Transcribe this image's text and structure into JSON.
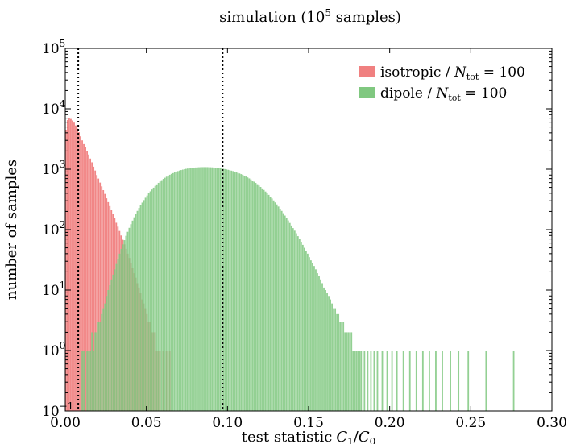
{
  "chart_data": {
    "type": "histogram",
    "title": "simulation (10",
    "title_sup": "5",
    "title_end": " samples)",
    "xlabel": "test statistic",
    "xlabel_math": "C",
    "xlabel_sub1": "1",
    "xlabel_slash": "/",
    "xlabel_sub0": "0",
    "ylabel": "number of samples",
    "xlim": [
      0.0,
      0.3
    ],
    "ylim": [
      0.1,
      100000
    ],
    "yscale": "log",
    "bin_width": 0.001,
    "xticks": [
      "0.00",
      "0.05",
      "0.10",
      "0.15",
      "0.20",
      "0.25",
      "0.30"
    ],
    "yticks": [
      {
        "value": 0.1,
        "base": "10",
        "exp": "−1"
      },
      {
        "value": 1,
        "base": "10",
        "exp": "0"
      },
      {
        "value": 10,
        "base": "10",
        "exp": "1"
      },
      {
        "value": 100,
        "base": "10",
        "exp": "2"
      },
      {
        "value": 1000,
        "base": "10",
        "exp": "3"
      },
      {
        "value": 10000,
        "base": "10",
        "exp": "4"
      },
      {
        "value": 100000,
        "base": "10",
        "exp": "5"
      }
    ],
    "vlines": [
      0.008,
      0.097
    ],
    "legend_position": "top-right",
    "series": [
      {
        "name": "isotropic",
        "legend_math": "N",
        "legend_sub": "tot",
        "legend_eq": " = 100",
        "color": "#f08080",
        "bins": [
          [
            0.0,
            4500
          ],
          [
            0.001,
            6500
          ],
          [
            0.002,
            7000
          ],
          [
            0.003,
            6800
          ],
          [
            0.004,
            6400
          ],
          [
            0.005,
            5900
          ],
          [
            0.006,
            5300
          ],
          [
            0.007,
            4700
          ],
          [
            0.008,
            4100
          ],
          [
            0.009,
            3500
          ],
          [
            0.01,
            3000
          ],
          [
            0.011,
            2600
          ],
          [
            0.012,
            2300
          ],
          [
            0.013,
            2000
          ],
          [
            0.014,
            1750
          ],
          [
            0.015,
            1500
          ],
          [
            0.016,
            1300
          ],
          [
            0.017,
            1100
          ],
          [
            0.018,
            950
          ],
          [
            0.019,
            800
          ],
          [
            0.02,
            700
          ],
          [
            0.021,
            600
          ],
          [
            0.022,
            520
          ],
          [
            0.023,
            450
          ],
          [
            0.024,
            390
          ],
          [
            0.025,
            330
          ],
          [
            0.026,
            285
          ],
          [
            0.027,
            245
          ],
          [
            0.028,
            210
          ],
          [
            0.029,
            180
          ],
          [
            0.03,
            155
          ],
          [
            0.031,
            130
          ],
          [
            0.032,
            112
          ],
          [
            0.033,
            95
          ],
          [
            0.034,
            80
          ],
          [
            0.035,
            68
          ],
          [
            0.036,
            57
          ],
          [
            0.037,
            48
          ],
          [
            0.038,
            40
          ],
          [
            0.039,
            34
          ],
          [
            0.04,
            28
          ],
          [
            0.041,
            23
          ],
          [
            0.042,
            19
          ],
          [
            0.043,
            16
          ],
          [
            0.044,
            13
          ],
          [
            0.045,
            11
          ],
          [
            0.046,
            9
          ],
          [
            0.047,
            7
          ],
          [
            0.048,
            6
          ],
          [
            0.049,
            5
          ],
          [
            0.05,
            4
          ],
          [
            0.051,
            3
          ],
          [
            0.052,
            3
          ],
          [
            0.053,
            2
          ],
          [
            0.054,
            2
          ],
          [
            0.055,
            2
          ],
          [
            0.056,
            1
          ],
          [
            0.057,
            1
          ],
          [
            0.058,
            1
          ],
          [
            0.06,
            1
          ],
          [
            0.062,
            1
          ],
          [
            0.064,
            1
          ]
        ]
      },
      {
        "name": "dipole",
        "legend_math": "N",
        "legend_sub": "tot",
        "legend_eq": " = 100",
        "color": "#80c880",
        "bins": [
          [
            0.01,
            1
          ],
          [
            0.011,
            1
          ],
          [
            0.013,
            1
          ],
          [
            0.014,
            1
          ],
          [
            0.015,
            1
          ],
          [
            0.016,
            2
          ],
          [
            0.017,
            1
          ],
          [
            0.018,
            2
          ],
          [
            0.019,
            2
          ],
          [
            0.02,
            3
          ],
          [
            0.021,
            3
          ],
          [
            0.022,
            4
          ],
          [
            0.023,
            5
          ],
          [
            0.024,
            6
          ],
          [
            0.025,
            8
          ],
          [
            0.026,
            10
          ],
          [
            0.027,
            12
          ],
          [
            0.028,
            15
          ],
          [
            0.029,
            18
          ],
          [
            0.03,
            22
          ],
          [
            0.031,
            27
          ],
          [
            0.032,
            33
          ],
          [
            0.033,
            40
          ],
          [
            0.034,
            48
          ],
          [
            0.035,
            57
          ],
          [
            0.036,
            67
          ],
          [
            0.037,
            79
          ],
          [
            0.038,
            92
          ],
          [
            0.039,
            107
          ],
          [
            0.04,
            123
          ],
          [
            0.041,
            141
          ],
          [
            0.042,
            160
          ],
          [
            0.043,
            181
          ],
          [
            0.044,
            204
          ],
          [
            0.045,
            228
          ],
          [
            0.046,
            253
          ],
          [
            0.047,
            280
          ],
          [
            0.048,
            308
          ],
          [
            0.049,
            337
          ],
          [
            0.05,
            367
          ],
          [
            0.051,
            398
          ],
          [
            0.052,
            430
          ],
          [
            0.053,
            462
          ],
          [
            0.054,
            495
          ],
          [
            0.055,
            528
          ],
          [
            0.056,
            561
          ],
          [
            0.057,
            594
          ],
          [
            0.058,
            627
          ],
          [
            0.059,
            659
          ],
          [
            0.06,
            691
          ],
          [
            0.061,
            722
          ],
          [
            0.062,
            752
          ],
          [
            0.063,
            781
          ],
          [
            0.064,
            809
          ],
          [
            0.065,
            836
          ],
          [
            0.066,
            861
          ],
          [
            0.067,
            885
          ],
          [
            0.068,
            908
          ],
          [
            0.069,
            929
          ],
          [
            0.07,
            949
          ],
          [
            0.071,
            967
          ],
          [
            0.072,
            984
          ],
          [
            0.073,
            999
          ],
          [
            0.074,
            1013
          ],
          [
            0.075,
            1025
          ],
          [
            0.076,
            1036
          ],
          [
            0.077,
            1046
          ],
          [
            0.078,
            1054
          ],
          [
            0.079,
            1061
          ],
          [
            0.08,
            1067
          ],
          [
            0.081,
            1072
          ],
          [
            0.082,
            1076
          ],
          [
            0.083,
            1079
          ],
          [
            0.084,
            1081
          ],
          [
            0.085,
            1082
          ],
          [
            0.086,
            1082
          ],
          [
            0.087,
            1081
          ],
          [
            0.088,
            1079
          ],
          [
            0.089,
            1076
          ],
          [
            0.09,
            1072
          ],
          [
            0.091,
            1067
          ],
          [
            0.092,
            1061
          ],
          [
            0.093,
            1054
          ],
          [
            0.094,
            1046
          ],
          [
            0.095,
            1037
          ],
          [
            0.096,
            1027
          ],
          [
            0.097,
            1016
          ],
          [
            0.098,
            1004
          ],
          [
            0.099,
            991
          ],
          [
            0.1,
            977
          ],
          [
            0.101,
            962
          ],
          [
            0.102,
            946
          ],
          [
            0.103,
            929
          ],
          [
            0.104,
            911
          ],
          [
            0.105,
            892
          ],
          [
            0.106,
            872
          ],
          [
            0.107,
            851
          ],
          [
            0.108,
            829
          ],
          [
            0.109,
            806
          ],
          [
            0.11,
            782
          ],
          [
            0.111,
            757
          ],
          [
            0.112,
            731
          ],
          [
            0.113,
            704
          ],
          [
            0.114,
            677
          ],
          [
            0.115,
            649
          ],
          [
            0.116,
            621
          ],
          [
            0.117,
            593
          ],
          [
            0.118,
            565
          ],
          [
            0.119,
            537
          ],
          [
            0.12,
            509
          ],
          [
            0.121,
            481
          ],
          [
            0.122,
            454
          ],
          [
            0.123,
            427
          ],
          [
            0.124,
            401
          ],
          [
            0.125,
            376
          ],
          [
            0.126,
            351
          ],
          [
            0.127,
            327
          ],
          [
            0.128,
            304
          ],
          [
            0.129,
            282
          ],
          [
            0.13,
            261
          ],
          [
            0.131,
            241
          ],
          [
            0.132,
            222
          ],
          [
            0.133,
            204
          ],
          [
            0.134,
            187
          ],
          [
            0.135,
            171
          ],
          [
            0.136,
            156
          ],
          [
            0.137,
            142
          ],
          [
            0.138,
            129
          ],
          [
            0.139,
            117
          ],
          [
            0.14,
            106
          ],
          [
            0.141,
            96
          ],
          [
            0.142,
            87
          ],
          [
            0.143,
            78
          ],
          [
            0.144,
            70
          ],
          [
            0.145,
            63
          ],
          [
            0.146,
            56
          ],
          [
            0.147,
            50
          ],
          [
            0.148,
            45
          ],
          [
            0.149,
            40
          ],
          [
            0.15,
            35
          ],
          [
            0.151,
            31
          ],
          [
            0.152,
            28
          ],
          [
            0.153,
            25
          ],
          [
            0.154,
            22
          ],
          [
            0.155,
            19
          ],
          [
            0.156,
            17
          ],
          [
            0.157,
            15
          ],
          [
            0.158,
            13
          ],
          [
            0.159,
            11
          ],
          [
            0.16,
            10
          ],
          [
            0.161,
            9
          ],
          [
            0.162,
            8
          ],
          [
            0.163,
            7
          ],
          [
            0.164,
            6
          ],
          [
            0.165,
            5
          ],
          [
            0.166,
            5
          ],
          [
            0.167,
            4
          ],
          [
            0.168,
            4
          ],
          [
            0.169,
            3
          ],
          [
            0.17,
            3
          ],
          [
            0.171,
            3
          ],
          [
            0.172,
            2
          ],
          [
            0.173,
            2
          ],
          [
            0.174,
            2
          ],
          [
            0.175,
            2
          ],
          [
            0.176,
            2
          ],
          [
            0.177,
            1
          ],
          [
            0.178,
            1
          ],
          [
            0.179,
            1
          ],
          [
            0.18,
            1
          ],
          [
            0.181,
            1
          ],
          [
            0.182,
            1
          ],
          [
            0.184,
            1
          ],
          [
            0.186,
            1
          ],
          [
            0.188,
            1
          ],
          [
            0.19,
            1
          ],
          [
            0.192,
            1
          ],
          [
            0.195,
            1
          ],
          [
            0.198,
            1
          ],
          [
            0.201,
            1
          ],
          [
            0.204,
            1
          ],
          [
            0.208,
            1
          ],
          [
            0.212,
            1
          ],
          [
            0.216,
            1
          ],
          [
            0.22,
            1
          ],
          [
            0.224,
            1
          ],
          [
            0.228,
            1
          ],
          [
            0.232,
            1
          ],
          [
            0.237,
            1
          ],
          [
            0.242,
            1
          ],
          [
            0.248,
            1
          ],
          [
            0.259,
            1
          ],
          [
            0.276,
            1
          ]
        ]
      }
    ]
  }
}
